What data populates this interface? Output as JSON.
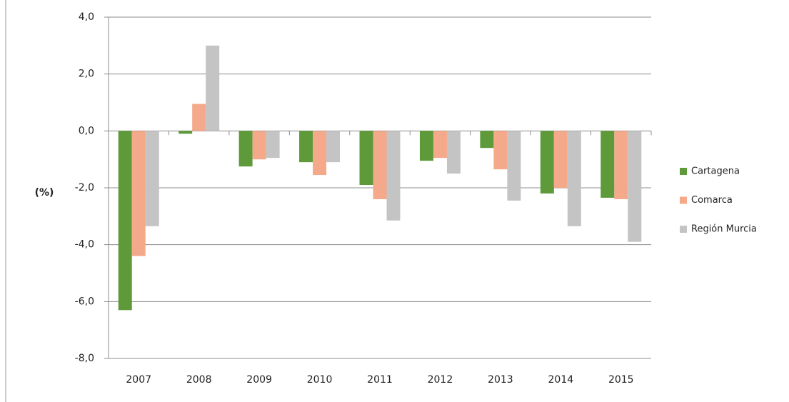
{
  "chart_data": {
    "type": "bar",
    "y_label": "(%)",
    "categories": [
      "2007",
      "2008",
      "2009",
      "2010",
      "2011",
      "2012",
      "2013",
      "2014",
      "2015"
    ],
    "series": [
      {
        "name": "Cartagena",
        "color": "#5e9a3a",
        "values": [
          -6.3,
          -0.1,
          -1.25,
          -1.1,
          -1.9,
          -1.05,
          -0.6,
          -2.2,
          -2.35
        ]
      },
      {
        "name": "Comarca",
        "color": "#f4a98a",
        "values": [
          -4.4,
          0.95,
          -1.0,
          -1.55,
          -2.4,
          -0.95,
          -1.35,
          -2.0,
          -2.4
        ]
      },
      {
        "name": "Región Murcia",
        "color": "#c4c4c4",
        "values": [
          -3.35,
          3.0,
          -0.95,
          -1.1,
          -3.15,
          -1.5,
          -2.45,
          -3.35,
          -3.9
        ]
      }
    ],
    "ylim": [
      -8,
      4
    ],
    "yticks": [
      {
        "value": -8,
        "label": "-8,0"
      },
      {
        "value": -6,
        "label": "-6,0"
      },
      {
        "value": -4,
        "label": "-4,0"
      },
      {
        "value": -2,
        "label": "-2,0"
      },
      {
        "value": 0,
        "label": "0,0"
      },
      {
        "value": 2,
        "label": "2,0"
      },
      {
        "value": 4,
        "label": "4,0"
      }
    ],
    "grid": true,
    "legend": "right"
  }
}
